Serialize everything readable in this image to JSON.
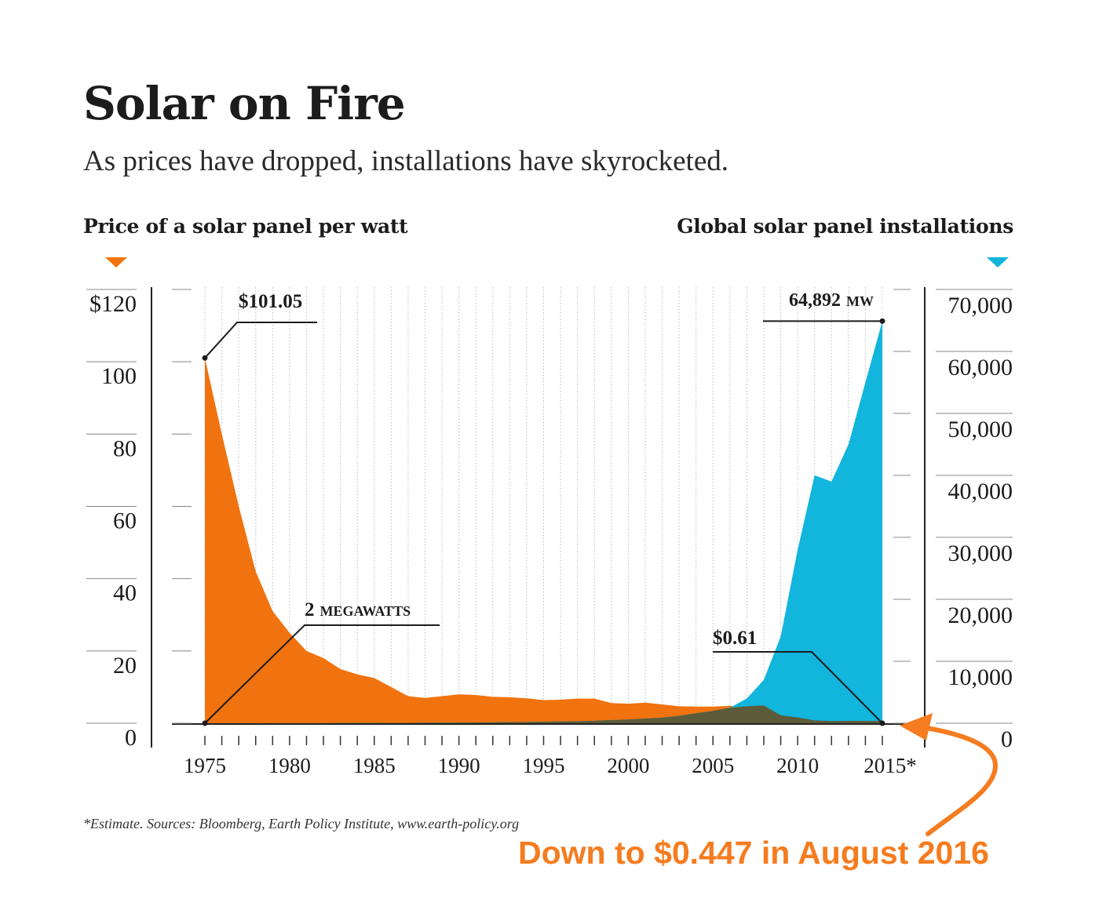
{
  "header": {
    "title": "Solar on Fire",
    "subtitle": "As prices have dropped, installations have skyrocketed."
  },
  "axis_titles": {
    "left": "Price of a solar panel per watt",
    "right": "Global solar panel installations"
  },
  "footnote": "*Estimate. Sources: Bloomberg, Earth Policy Institute, www.earth-policy.org",
  "callout": "Down to $0.447 in August 2016",
  "colors": {
    "price": "#f0730f",
    "installs": "#12b5dc",
    "overlap": "#5c5c3a",
    "grid": "#bbbbbb",
    "callout": "#f57c1f"
  },
  "chart_data": {
    "type": "area",
    "title": "Solar on Fire",
    "x": [
      1975,
      1976,
      1977,
      1978,
      1979,
      1980,
      1981,
      1982,
      1983,
      1984,
      1985,
      1986,
      1987,
      1988,
      1989,
      1990,
      1991,
      1992,
      1993,
      1994,
      1995,
      1996,
      1997,
      1998,
      1999,
      2000,
      2001,
      2002,
      2003,
      2004,
      2005,
      2006,
      2007,
      2008,
      2009,
      2010,
      2011,
      2012,
      2013,
      2014,
      2015
    ],
    "x_ticks": [
      "1975",
      "1980",
      "1985",
      "1990",
      "1995",
      "2000",
      "2005",
      "2010",
      "2015*"
    ],
    "left_axis": {
      "label": "Price of a solar panel per watt",
      "ylim": [
        0,
        120
      ],
      "ticks": [
        "0",
        "20",
        "40",
        "60",
        "80",
        "100",
        "$120"
      ]
    },
    "right_axis": {
      "label": "Global solar panel installations",
      "ylim": [
        0,
        70000
      ],
      "ticks": [
        "0",
        "10,000",
        "20,000",
        "30,000",
        "40,000",
        "50,000",
        "60,000",
        "70,000"
      ]
    },
    "series": [
      {
        "name": "Price of a solar panel per watt",
        "axis": "left",
        "unit": "$/W",
        "values": [
          101.05,
          80,
          60,
          42,
          31,
          25,
          20,
          18,
          15,
          13.5,
          12.5,
          10,
          7.5,
          7,
          7.5,
          8,
          7.8,
          7.3,
          7.2,
          6.9,
          6.4,
          6.5,
          6.8,
          6.8,
          5.6,
          5.4,
          5.7,
          5.2,
          4.7,
          4.6,
          4.6,
          4.8,
          4.7,
          4.9,
          2.2,
          1.6,
          0.8,
          0.6,
          0.65,
          0.63,
          0.61
        ]
      },
      {
        "name": "Global solar panel installations",
        "axis": "right",
        "unit": "MW",
        "values": [
          2,
          2,
          3,
          5,
          8,
          10,
          15,
          20,
          30,
          40,
          50,
          60,
          70,
          80,
          90,
          100,
          120,
          150,
          180,
          200,
          240,
          280,
          320,
          400,
          500,
          600,
          750,
          900,
          1200,
          1600,
          2000,
          2500,
          4000,
          7000,
          14000,
          28000,
          40000,
          39000,
          45000,
          55000,
          64892
        ]
      }
    ],
    "annotations": {
      "price_start": "$101.05",
      "install_start_num": "2",
      "install_start_unit": "MEGAWATTS",
      "price_end": "$0.61",
      "install_end_num": "64,892",
      "install_end_unit": "MW"
    }
  }
}
